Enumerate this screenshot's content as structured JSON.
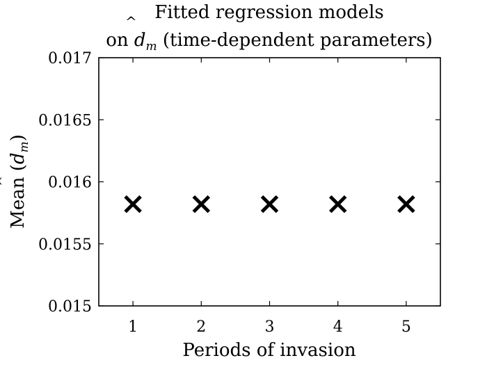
{
  "chart_data": {
    "type": "scatter",
    "title": {
      "line1": "Fitted regression models",
      "line2_prefix": "on ",
      "line2_symbol": "d",
      "line2_subscript": "m",
      "line2_suffix": " (time-dependent parameters)"
    },
    "xlabel": "Periods of invasion",
    "ylabel": {
      "prefix": "Mean (",
      "symbol": "d",
      "subscript": "m",
      "suffix": ")"
    },
    "x": [
      1,
      2,
      3,
      4,
      5
    ],
    "y": [
      0.01582,
      0.01582,
      0.01582,
      0.01582,
      0.01582
    ],
    "xlim": [
      0.5,
      5.5
    ],
    "ylim": [
      0.015,
      0.017
    ],
    "xticks": [
      1,
      2,
      3,
      4,
      5
    ],
    "xtick_labels": [
      "1",
      "2",
      "3",
      "4",
      "5"
    ],
    "yticks": [
      0.015,
      0.0155,
      0.016,
      0.0165,
      0.017
    ],
    "ytick_labels": [
      "0.015",
      "0.0155",
      "0.016",
      "0.0165",
      "0.017"
    ],
    "marker": "x",
    "marker_color": "#000000",
    "grid": false,
    "legend": false
  }
}
